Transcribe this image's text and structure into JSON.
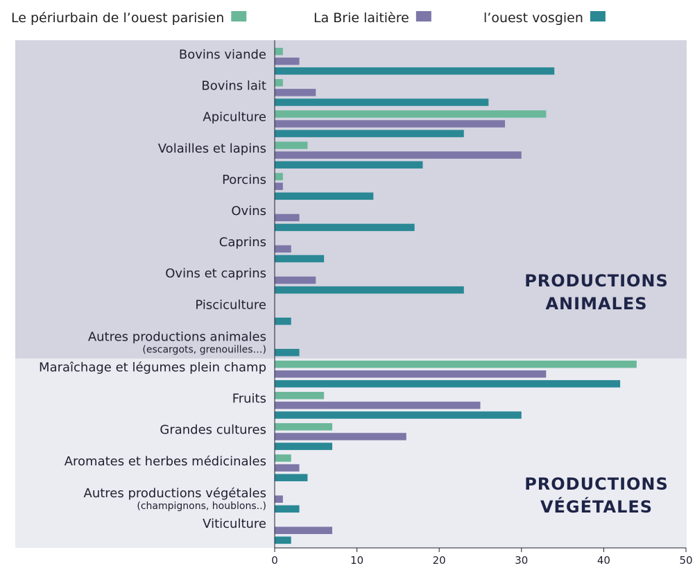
{
  "chart_data": {
    "type": "bar",
    "orientation": "horizontal",
    "grouped": true,
    "xlim": [
      0,
      50
    ],
    "x_ticks": [
      "0",
      "10",
      "20",
      "30",
      "40",
      "50"
    ],
    "legend_position": "top",
    "grid": false,
    "colors": {
      "series": [
        "#6ab79a",
        "#7d77a8",
        "#2a8895"
      ],
      "section_bg": [
        "#d3d4e0",
        "#ebecf2"
      ]
    },
    "series": [
      {
        "name": "Le périurbain de l’ouest parisien",
        "values": [
          1,
          1,
          33,
          4,
          1,
          0,
          0,
          0,
          0,
          0,
          44,
          6,
          7,
          2,
          0,
          0
        ]
      },
      {
        "name": "La Brie laitière",
        "values": [
          3,
          5,
          28,
          30,
          1,
          3,
          2,
          5,
          0,
          0,
          33,
          25,
          16,
          3,
          1,
          7
        ]
      },
      {
        "name": "l’ouest vosgien",
        "values": [
          34,
          26,
          23,
          18,
          12,
          17,
          6,
          23,
          2,
          3,
          42,
          30,
          7,
          4,
          3,
          2
        ]
      }
    ],
    "categories": [
      {
        "label": "Bovins viande",
        "sub": ""
      },
      {
        "label": "Bovins lait",
        "sub": ""
      },
      {
        "label": "Apiculture",
        "sub": ""
      },
      {
        "label": "Volailles et lapins",
        "sub": ""
      },
      {
        "label": "Porcins",
        "sub": ""
      },
      {
        "label": "Ovins",
        "sub": ""
      },
      {
        "label": "Caprins",
        "sub": ""
      },
      {
        "label": "Ovins et caprins",
        "sub": ""
      },
      {
        "label": "Pisciculture",
        "sub": ""
      },
      {
        "label": "Autres productions animales",
        "sub": "(escargots, grenouilles…)"
      },
      {
        "label": "Maraîchage et légumes plein champ",
        "sub": ""
      },
      {
        "label": "Fruits",
        "sub": ""
      },
      {
        "label": "Grandes cultures",
        "sub": ""
      },
      {
        "label": "Aromates et herbes médicinales",
        "sub": ""
      },
      {
        "label": "Autres productions végétales",
        "sub": "(champignons, houblons..)"
      },
      {
        "label": "Viticulture",
        "sub": ""
      }
    ],
    "sections": [
      {
        "title_lines": [
          "PRODUCTIONS",
          "ANIMALES"
        ],
        "categories_count": 10
      },
      {
        "title_lines": [
          "PRODUCTIONS",
          "VÉGÉTALES"
        ],
        "categories_count": 6
      }
    ]
  }
}
